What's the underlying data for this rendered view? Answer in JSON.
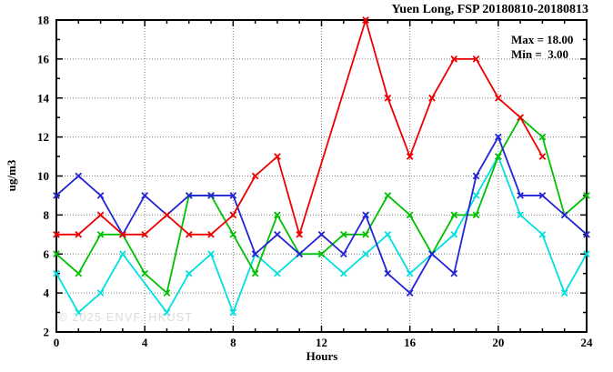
{
  "chart_data": {
    "type": "line",
    "title": "Yuen Long, FSP 20180810-20180813",
    "xlabel": "Hours",
    "ylabel": "ug/m3",
    "xlim": [
      0,
      24
    ],
    "ylim": [
      2,
      18
    ],
    "xticks": [
      0,
      4,
      8,
      12,
      16,
      20,
      24
    ],
    "yticks": [
      2,
      4,
      6,
      8,
      10,
      12,
      14,
      16,
      18
    ],
    "x_minor_step": 1,
    "y_minor_step": 1,
    "grid": true,
    "legend_position": "none",
    "annotations": {
      "max": "Max = 18.00",
      "min": "Min =  3.00"
    },
    "watermark": "© 2025 ENVF, HKUST",
    "frame_color": "#000000",
    "grid_color": "#7f7f7f",
    "x": [
      0,
      1,
      2,
      3,
      4,
      5,
      6,
      7,
      8,
      9,
      10,
      11,
      12,
      13,
      14,
      15,
      16,
      17,
      18,
      19,
      20,
      21,
      22,
      23,
      24
    ],
    "series": [
      {
        "name": "cyan",
        "color": "#00e0e0",
        "values": [
          5,
          3,
          4,
          6,
          null,
          3,
          5,
          6,
          3,
          6,
          5,
          6,
          6,
          5,
          6,
          7,
          5,
          6,
          7,
          9,
          11,
          8,
          7,
          4,
          6
        ]
      },
      {
        "name": "green",
        "color": "#00c000",
        "values": [
          6,
          5,
          7,
          7,
          5,
          4,
          9,
          9,
          7,
          5,
          8,
          6,
          6,
          7,
          7,
          9,
          8,
          6,
          8,
          8,
          11,
          13,
          12,
          8,
          9
        ]
      },
      {
        "name": "blue",
        "color": "#2424d6",
        "values": [
          9,
          10,
          9,
          7,
          9,
          8,
          9,
          9,
          9,
          6,
          7,
          6,
          7,
          6,
          8,
          5,
          4,
          6,
          5,
          10,
          12,
          9,
          9,
          8,
          7
        ]
      },
      {
        "name": "red",
        "color": "#ee0000",
        "values": [
          7,
          7,
          8,
          7,
          7,
          8,
          7,
          7,
          8,
          10,
          11,
          7,
          null,
          null,
          18,
          14,
          11,
          14,
          16,
          16,
          14,
          13,
          11,
          null,
          null
        ]
      }
    ]
  }
}
